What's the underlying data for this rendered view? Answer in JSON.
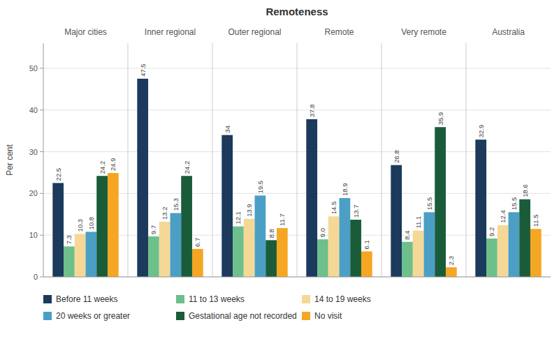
{
  "chart_data": {
    "type": "bar",
    "title": "Remoteness",
    "y_label": "Per cent",
    "categories": [
      "Major cities",
      "Inner regional",
      "Outer regional",
      "Remote",
      "Very remote",
      "Australia"
    ],
    "series": [
      {
        "name": "Before 11 weeks",
        "color": "#1b3a5c",
        "values": [
          22.5,
          47.5,
          34.0,
          37.8,
          26.8,
          32.9
        ]
      },
      {
        "name": "11 to 13 weeks",
        "color": "#6dbf8b",
        "values": [
          7.3,
          9.7,
          12.1,
          9.0,
          8.4,
          9.2
        ],
        "value_labels": [
          "7.3",
          "9.7",
          "12.1",
          "9.0",
          "8.4",
          "9.2"
        ]
      },
      {
        "name": "14 to 19 weeks",
        "color": "#f5d896",
        "values": [
          10.3,
          13.2,
          13.9,
          14.5,
          11.1,
          12.4
        ]
      },
      {
        "name": "20 weeks or greater",
        "color": "#4b9fc5",
        "values": [
          10.8,
          15.3,
          19.5,
          18.9,
          15.5,
          15.5
        ]
      },
      {
        "name": "Gestational age not recorded",
        "color": "#1a5c3a",
        "values": [
          24.2,
          24.2,
          8.8,
          13.7,
          35.9,
          18.6
        ]
      },
      {
        "name": "No visit",
        "color": "#f5a623",
        "values": [
          24.9,
          6.7,
          11.7,
          6.1,
          2.3,
          11.5
        ]
      }
    ],
    "ylim": [
      0,
      56
    ],
    "yticks": [
      0,
      10,
      20,
      30,
      40,
      50
    ],
    "grid": true,
    "data_labels": true,
    "legend": "bottom"
  }
}
